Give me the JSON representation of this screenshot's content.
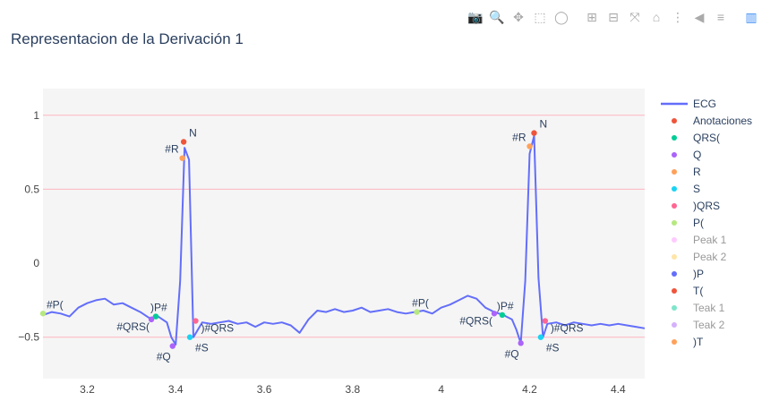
{
  "title": "Representacion de la Derivación 1",
  "toolbar": {
    "icons": [
      "camera-icon",
      "zoom-icon",
      "pan-icon",
      "box-select-icon",
      "lasso-icon",
      "zoom-in-icon",
      "zoom-out-icon",
      "autoscale-icon",
      "home-icon",
      "spike-lines-icon",
      "hover-closest-icon",
      "hover-compare-icon",
      "plotly-logo-icon"
    ]
  },
  "chart_data": {
    "type": "line",
    "title": "Representacion de la Derivación 1",
    "xlabel": "",
    "ylabel": "",
    "xlim": [
      3.1,
      4.46
    ],
    "ylim": [
      -0.78,
      1.18
    ],
    "xticks": [
      "3.2",
      "3.4",
      "3.6",
      "3.8",
      "4",
      "4.2",
      "4.4"
    ],
    "xtick_values": [
      3.2,
      3.4,
      3.6,
      3.8,
      4.0,
      4.2,
      4.4
    ],
    "yticks": [
      "1",
      "0.5",
      "0",
      "−0.5"
    ],
    "ytick_values": [
      1,
      0.5,
      0,
      -0.5
    ],
    "hlines": [
      1,
      0.5,
      -0.5
    ],
    "colors": {
      "ecg": "#636efa",
      "anotaciones": "#ef553b",
      "qrs_open": "#00cc96",
      "q": "#ab63fa",
      "r": "#ffa15a",
      "s": "#19d3f3",
      "qrs_close": "#ff6692",
      "p_open": "#b6e880",
      "peak1": "#ff97ff",
      "peak2": "#fecb52",
      "p_close": "#636efa",
      "t_open": "#ef553b",
      "teak1": "#00cc96",
      "teak2": "#ab63fa",
      "t_close": "#ffa15a",
      "hline": "#ffb6c1",
      "plot_bg": "#f5f5f5"
    },
    "ecg": {
      "x": [
        3.1,
        3.12,
        3.14,
        3.16,
        3.18,
        3.2,
        3.22,
        3.24,
        3.26,
        3.28,
        3.3,
        3.32,
        3.34,
        3.36,
        3.38,
        3.39,
        3.4,
        3.41,
        3.42,
        3.43,
        3.44,
        3.46,
        3.48,
        3.5,
        3.52,
        3.54,
        3.56,
        3.58,
        3.6,
        3.62,
        3.64,
        3.66,
        3.68,
        3.7,
        3.72,
        3.74,
        3.76,
        3.78,
        3.8,
        3.82,
        3.84,
        3.86,
        3.88,
        3.9,
        3.92,
        3.94,
        3.96,
        3.98,
        4.0,
        4.02,
        4.04,
        4.06,
        4.08,
        4.1,
        4.12,
        4.14,
        4.16,
        4.17,
        4.18,
        4.19,
        4.2,
        4.21,
        4.22,
        4.23,
        4.24,
        4.26,
        4.28,
        4.3,
        4.32,
        4.34,
        4.36,
        4.38,
        4.4,
        4.42,
        4.44,
        4.46
      ],
      "y": [
        -0.35,
        -0.33,
        -0.34,
        -0.36,
        -0.3,
        -0.27,
        -0.25,
        -0.24,
        -0.28,
        -0.27,
        -0.3,
        -0.33,
        -0.37,
        -0.36,
        -0.4,
        -0.5,
        -0.55,
        -0.12,
        0.78,
        0.7,
        -0.5,
        -0.4,
        -0.41,
        -0.4,
        -0.39,
        -0.41,
        -0.4,
        -0.43,
        -0.4,
        -0.41,
        -0.4,
        -0.42,
        -0.47,
        -0.38,
        -0.32,
        -0.33,
        -0.31,
        -0.33,
        -0.32,
        -0.3,
        -0.33,
        -0.32,
        -0.31,
        -0.33,
        -0.34,
        -0.33,
        -0.32,
        -0.34,
        -0.3,
        -0.28,
        -0.25,
        -0.22,
        -0.24,
        -0.3,
        -0.33,
        -0.35,
        -0.38,
        -0.45,
        -0.54,
        -0.12,
        0.74,
        0.86,
        -0.1,
        -0.5,
        -0.41,
        -0.4,
        -0.42,
        -0.4,
        -0.41,
        -0.42,
        -0.41,
        -0.42,
        -0.41,
        -0.42,
        -0.43,
        -0.44
      ]
    },
    "annotations": [
      {
        "label": "#P(",
        "x": 3.1,
        "y": -0.34,
        "color": "#b6e880"
      },
      {
        "label": ")P#",
        "x": 3.355,
        "y": -0.36,
        "color": "#00cc96"
      },
      {
        "label": "#QRS(",
        "x": 3.345,
        "y": -0.38,
        "color": "#ab63fa"
      },
      {
        "label": "#Q",
        "x": 3.393,
        "y": -0.56,
        "color": "#ab63fa"
      },
      {
        "label": "#R",
        "x": 3.415,
        "y": 0.71,
        "color": "#ffa15a"
      },
      {
        "label": "N",
        "x": 3.418,
        "y": 0.82,
        "color": "#ef553b"
      },
      {
        "label": "#S",
        "x": 3.432,
        "y": -0.5,
        "color": "#19d3f3"
      },
      {
        "label": ")#QRS",
        "x": 3.445,
        "y": -0.39,
        "color": "#ff6692"
      },
      {
        "label": "#P(",
        "x": 3.945,
        "y": -0.33,
        "color": "#b6e880"
      },
      {
        "label": ")P#",
        "x": 4.138,
        "y": -0.35,
        "color": "#00cc96"
      },
      {
        "label": "#QRS(",
        "x": 4.12,
        "y": -0.34,
        "color": "#ab63fa"
      },
      {
        "label": "#Q",
        "x": 4.18,
        "y": -0.54,
        "color": "#ab63fa"
      },
      {
        "label": "#R",
        "x": 4.2,
        "y": 0.79,
        "color": "#ffa15a"
      },
      {
        "label": "N",
        "x": 4.21,
        "y": 0.88,
        "color": "#ef553b"
      },
      {
        "label": "#S",
        "x": 4.225,
        "y": -0.5,
        "color": "#19d3f3"
      },
      {
        "label": ")#QRS",
        "x": 4.235,
        "y": -0.39,
        "color": "#ff6692"
      }
    ],
    "legend": [
      {
        "name": "ECG",
        "type": "line",
        "color": "#636efa",
        "visible": true
      },
      {
        "name": "Anotaciones",
        "type": "marker",
        "color": "#ef553b",
        "visible": true
      },
      {
        "name": "QRS(",
        "type": "marker",
        "color": "#00cc96",
        "visible": true
      },
      {
        "name": "Q",
        "type": "marker",
        "color": "#ab63fa",
        "visible": true
      },
      {
        "name": "R",
        "type": "marker",
        "color": "#ffa15a",
        "visible": true
      },
      {
        "name": "S",
        "type": "marker",
        "color": "#19d3f3",
        "visible": true
      },
      {
        "name": ")QRS",
        "type": "marker",
        "color": "#ff6692",
        "visible": true
      },
      {
        "name": "P(",
        "type": "marker",
        "color": "#b6e880",
        "visible": true
      },
      {
        "name": "Peak 1",
        "type": "marker",
        "color": "#ff97ff",
        "visible": false
      },
      {
        "name": "Peak 2",
        "type": "marker",
        "color": "#fecb52",
        "visible": false
      },
      {
        "name": ")P",
        "type": "marker",
        "color": "#636efa",
        "visible": true
      },
      {
        "name": "T(",
        "type": "marker",
        "color": "#ef553b",
        "visible": true
      },
      {
        "name": "Teak 1",
        "type": "marker",
        "color": "#00cc96",
        "visible": false
      },
      {
        "name": "Teak 2",
        "type": "marker",
        "color": "#ab63fa",
        "visible": false
      },
      {
        "name": ")T",
        "type": "marker",
        "color": "#ffa15a",
        "visible": true
      }
    ],
    "legend_position": "right",
    "grid": false
  }
}
